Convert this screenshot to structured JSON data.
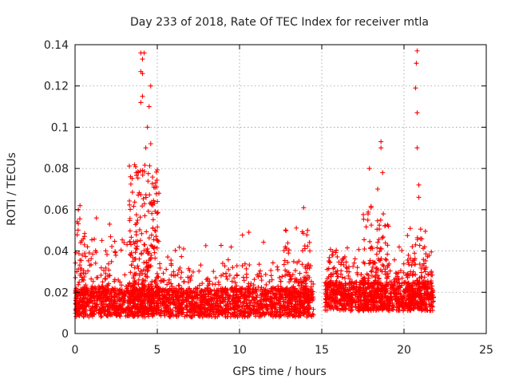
{
  "chart_data": {
    "type": "scatter",
    "title": "Day 233 of 2018, Rate Of TEC Index for receiver mtla",
    "xlabel": "GPS time / hours",
    "ylabel": "ROTI / TECUs",
    "xlim": [
      0,
      25
    ],
    "ylim": [
      0,
      0.14
    ],
    "xticks": [
      0,
      5,
      10,
      15,
      20,
      25
    ],
    "xtick_labels": [
      "0",
      "5",
      "10",
      "15",
      "20",
      "25"
    ],
    "yticks": [
      0,
      0.02,
      0.04,
      0.06,
      0.08,
      0.1,
      0.12,
      0.14
    ],
    "ytick_labels": [
      "0",
      "0.02",
      "0.04",
      "0.06",
      "0.08",
      "0.1",
      "0.12",
      "0.14"
    ],
    "grid": true,
    "marker": "+",
    "color": "#ff0000",
    "segments": [
      {
        "start": 0,
        "end": 14.5,
        "baseline": 0.015
      },
      {
        "start": 15.2,
        "end": 21.8,
        "baseline": 0.018
      }
    ],
    "notable_points": [
      {
        "x": 4.0,
        "y": 0.136
      },
      {
        "x": 4.1,
        "y": 0.133
      },
      {
        "x": 4.2,
        "y": 0.136
      },
      {
        "x": 4.0,
        "y": 0.127
      },
      {
        "x": 4.1,
        "y": 0.126
      },
      {
        "x": 4.6,
        "y": 0.12
      },
      {
        "x": 4.1,
        "y": 0.115
      },
      {
        "x": 4.0,
        "y": 0.112
      },
      {
        "x": 4.5,
        "y": 0.11
      },
      {
        "x": 4.4,
        "y": 0.1
      },
      {
        "x": 4.6,
        "y": 0.092
      },
      {
        "x": 4.3,
        "y": 0.09
      },
      {
        "x": 0.3,
        "y": 0.062
      },
      {
        "x": 0.2,
        "y": 0.06
      },
      {
        "x": 1.3,
        "y": 0.056
      },
      {
        "x": 2.1,
        "y": 0.053
      },
      {
        "x": 5.1,
        "y": 0.068
      },
      {
        "x": 13.9,
        "y": 0.061
      },
      {
        "x": 17.9,
        "y": 0.08
      },
      {
        "x": 18.6,
        "y": 0.093
      },
      {
        "x": 18.6,
        "y": 0.09
      },
      {
        "x": 18.7,
        "y": 0.078
      },
      {
        "x": 18.4,
        "y": 0.07
      },
      {
        "x": 18.0,
        "y": 0.061
      },
      {
        "x": 20.8,
        "y": 0.137
      },
      {
        "x": 20.75,
        "y": 0.131
      },
      {
        "x": 20.7,
        "y": 0.119
      },
      {
        "x": 20.8,
        "y": 0.107
      },
      {
        "x": 20.8,
        "y": 0.09
      },
      {
        "x": 20.9,
        "y": 0.072
      },
      {
        "x": 20.9,
        "y": 0.066
      },
      {
        "x": 17.8,
        "y": 0.055
      }
    ]
  }
}
